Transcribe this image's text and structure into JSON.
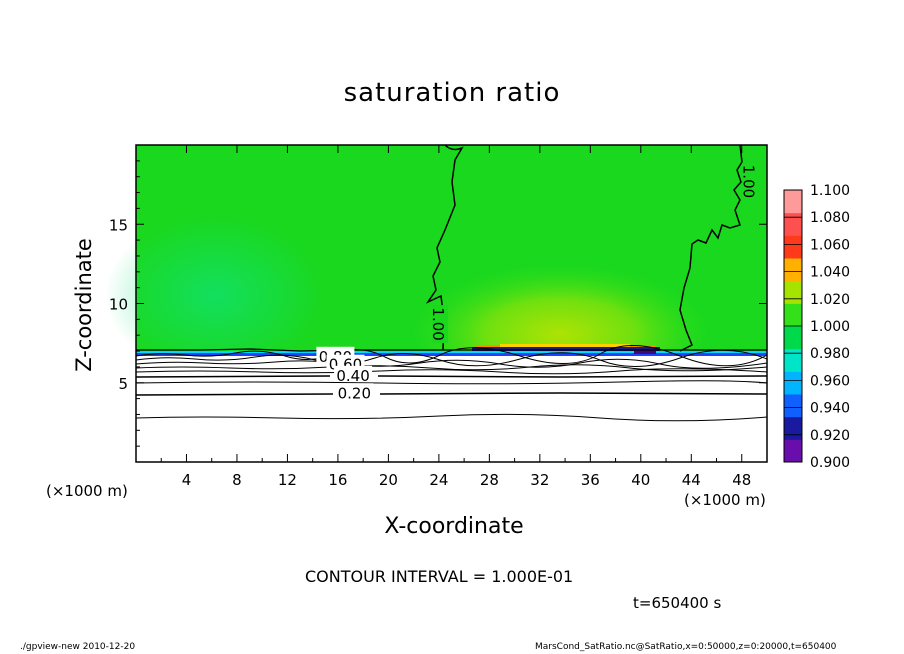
{
  "chart_data": {
    "type": "heatmap",
    "title": "saturation ratio",
    "xlabel": "X-coordinate",
    "ylabel": "Z-coordinate",
    "x_unit": "(×1000 m)",
    "x_unit_right": "(×1000 m)",
    "x_ticks": [
      4,
      8,
      12,
      16,
      20,
      24,
      28,
      32,
      36,
      40,
      44,
      48
    ],
    "y_ticks": [
      5,
      10,
      15
    ],
    "xlim": [
      0,
      50
    ],
    "ylim": [
      0,
      20
    ],
    "colorbar": {
      "levels": [
        "0.900",
        "0.920",
        "0.940",
        "0.960",
        "0.980",
        "1.000",
        "1.020",
        "1.040",
        "1.060",
        "1.080",
        "1.100"
      ],
      "colors": [
        "#6a0dad",
        "#1a1aa0",
        "#1060ff",
        "#00b4ff",
        "#00e5c8",
        "#00d94a",
        "#34e01a",
        "#a6e400",
        "#ffb000",
        "#ff3a1a",
        "#ff5050",
        "#ff9a9a"
      ]
    },
    "contour_labels": [
      {
        "text": "1.00",
        "x": 48.6,
        "z": 17.7,
        "rotate": 90
      },
      {
        "text": "1.00",
        "x": 24.0,
        "z": 8.7,
        "rotate": 90
      },
      {
        "text": "0.80",
        "x": 15.8,
        "z": 6.7,
        "rotate": 0
      },
      {
        "text": "0.60",
        "x": 16.6,
        "z": 6.2,
        "rotate": 0
      },
      {
        "text": "0.40",
        "x": 17.2,
        "z": 5.5,
        "rotate": 0
      },
      {
        "text": "0.20",
        "x": 17.3,
        "z": 4.4,
        "rotate": 0
      }
    ],
    "contour_interval": "CONTOUR INTERVAL = 1.000E-01",
    "time": "t=650400 s"
  },
  "footer": {
    "left": "./gpview-new   2010-12-20",
    "right": "MarsCond_SatRatio.nc@SatRatio,x=0:50000,z=0:20000,t=650400"
  }
}
